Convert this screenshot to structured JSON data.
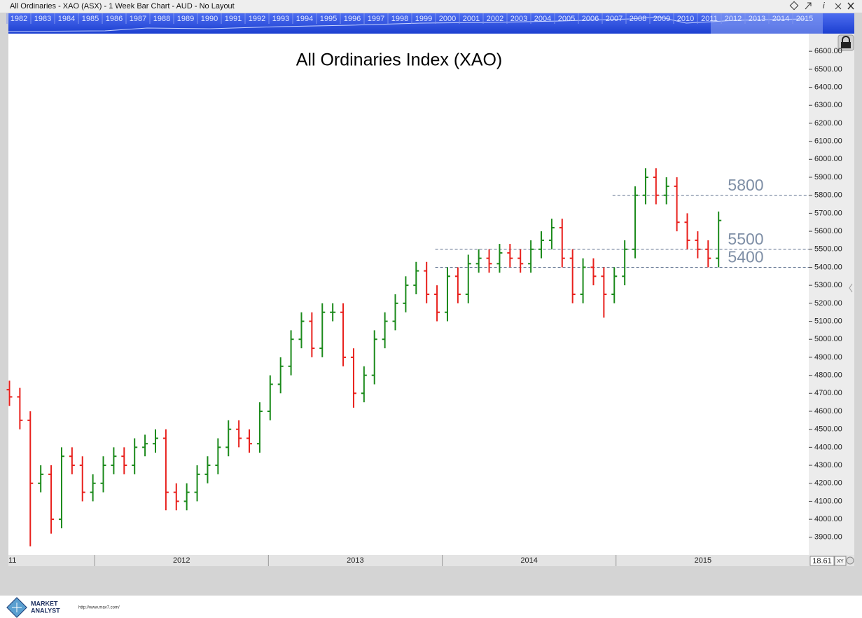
{
  "window_title": "All Ordinaries - XAO (ASX) - 1 Week Bar Chart - AUD - No Layout",
  "overview_years": [
    "1982",
    "1983",
    "1984",
    "1985",
    "1986",
    "1987",
    "1988",
    "1989",
    "1990",
    "1991",
    "1992",
    "1993",
    "1994",
    "1995",
    "1996",
    "1997",
    "1998",
    "1999",
    "2000",
    "2001",
    "2002",
    "2003",
    "2004",
    "2005",
    "2006",
    "2007",
    "2008",
    "2009",
    "2010",
    "2011",
    "2012",
    "2013",
    "2014",
    "2015"
  ],
  "zoom_value": "18.61",
  "zoom_mode": "XY",
  "footer": {
    "brand_line1": "MARKET",
    "brand_line2": "ANALYST",
    "url": "http://www.mav7.com/"
  },
  "chart_data": {
    "type": "ohlc",
    "title": "All Ordinaries Index (XAO)",
    "up_color": "#1b8a1b",
    "down_color": "#e8201c",
    "xlim": [
      2011.504,
      2016.109
    ],
    "xticks": [
      {
        "value": 2011,
        "label": "11"
      },
      2012,
      2013,
      2014,
      2015
    ],
    "ylim": [
      3802,
      6698
    ],
    "yticks": [
      {
        "value": 3900,
        "label": "3900.00"
      },
      {
        "value": 4000,
        "label": "4000.00"
      },
      {
        "value": 4100,
        "label": "4100.00"
      },
      {
        "value": 4200,
        "label": "4200.00"
      },
      {
        "value": 4300,
        "label": "4300.00"
      },
      {
        "value": 4400,
        "label": "4400.00"
      },
      {
        "value": 4500,
        "label": "4500.00"
      },
      {
        "value": 4600,
        "label": "4600.00"
      },
      {
        "value": 4700,
        "label": "4700.00"
      },
      {
        "value": 4800,
        "label": "4800.00"
      },
      {
        "value": 4900,
        "label": "4900.00"
      },
      {
        "value": 5000,
        "label": "5000.00"
      },
      {
        "value": 5100,
        "label": "5100.00"
      },
      {
        "value": 5200,
        "label": "5200.00"
      },
      {
        "value": 5300,
        "label": "5300.00"
      },
      {
        "value": 5400,
        "label": "5400.00"
      },
      {
        "value": 5500,
        "label": "5500.00"
      },
      {
        "value": 5600,
        "label": "5600.00"
      },
      {
        "value": 5700,
        "label": "5700.00"
      },
      {
        "value": 5800,
        "label": "5800.00"
      },
      {
        "value": 5900,
        "label": "5900.00"
      },
      {
        "value": 6000,
        "label": "6000.00"
      },
      {
        "value": 6100,
        "label": "6100.00"
      },
      {
        "value": 6200,
        "label": "6200.00"
      },
      {
        "value": 6300,
        "label": "6300.00"
      },
      {
        "value": 6400,
        "label": "6400.00"
      },
      {
        "value": 6500,
        "label": "6500.00"
      },
      {
        "value": 6600,
        "label": "6600.00"
      }
    ],
    "hlines": [
      {
        "y": 5800,
        "x": 2014.98
      },
      {
        "y": 5500,
        "x": 2013.96
      },
      {
        "y": 5400,
        "x": 2013.96
      }
    ],
    "x": [
      2011.51,
      2011.57,
      2011.63,
      2011.69,
      2011.75,
      2011.81,
      2011.87,
      2011.93,
      2011.99,
      2012.05,
      2012.11,
      2012.17,
      2012.23,
      2012.29,
      2012.35,
      2012.41,
      2012.47,
      2012.53,
      2012.59,
      2012.65,
      2012.71,
      2012.77,
      2012.83,
      2012.89,
      2012.95,
      2013.01,
      2013.07,
      2013.13,
      2013.19,
      2013.25,
      2013.31,
      2013.37,
      2013.43,
      2013.49,
      2013.55,
      2013.61,
      2013.67,
      2013.73,
      2013.79,
      2013.85,
      2013.91,
      2013.97,
      2014.03,
      2014.09,
      2014.15,
      2014.21,
      2014.27,
      2014.33,
      2014.39,
      2014.45,
      2014.51,
      2014.57,
      2014.63,
      2014.69,
      2014.75,
      2014.81,
      2014.87,
      2014.93,
      2014.99,
      2015.05,
      2015.11,
      2015.17,
      2015.23,
      2015.29,
      2015.35,
      2015.41,
      2015.47,
      2015.53,
      2015.59
    ],
    "open": [
      4720,
      4680,
      4550,
      4200,
      4250,
      4000,
      4350,
      4300,
      4150,
      4200,
      4300,
      4350,
      4300,
      4400,
      4420,
      4450,
      4150,
      4100,
      4150,
      4250,
      4300,
      4400,
      4500,
      4450,
      4420,
      4600,
      4750,
      4850,
      5000,
      5100,
      4950,
      5150,
      5150,
      4900,
      4700,
      4800,
      5000,
      5100,
      5200,
      5300,
      5380,
      5250,
      5150,
      5350,
      5250,
      5420,
      5450,
      5420,
      5480,
      5450,
      5420,
      5500,
      5550,
      5620,
      5450,
      5250,
      5400,
      5350,
      5250,
      5350,
      5500,
      5800,
      5900,
      5800,
      5850,
      5650,
      5550,
      5500,
      5450
    ],
    "high": [
      4770,
      4730,
      4600,
      4300,
      4300,
      4400,
      4400,
      4350,
      4250,
      4350,
      4400,
      4400,
      4450,
      4470,
      4500,
      4500,
      4200,
      4200,
      4300,
      4350,
      4450,
      4550,
      4550,
      4500,
      4650,
      4800,
      4900,
      5050,
      5150,
      5150,
      5200,
      5200,
      5200,
      4950,
      4850,
      5050,
      5150,
      5250,
      5350,
      5430,
      5430,
      5300,
      5400,
      5400,
      5470,
      5500,
      5500,
      5530,
      5530,
      5500,
      5550,
      5600,
      5670,
      5670,
      5500,
      5450,
      5450,
      5400,
      5400,
      5550,
      5850,
      5950,
      5950,
      5900,
      5900,
      5700,
      5600,
      5550,
      5710
    ],
    "low": [
      4630,
      4500,
      3850,
      4150,
      3920,
      3950,
      4250,
      4100,
      4100,
      4150,
      4250,
      4250,
      4250,
      4350,
      4370,
      4050,
      4050,
      4050,
      4100,
      4200,
      4250,
      4350,
      4400,
      4370,
      4370,
      4550,
      4700,
      4800,
      4950,
      4900,
      4900,
      5100,
      4850,
      4620,
      4650,
      4750,
      4950,
      5050,
      5150,
      5250,
      5200,
      5100,
      5100,
      5200,
      5200,
      5370,
      5370,
      5370,
      5400,
      5370,
      5370,
      5450,
      5500,
      5400,
      5200,
      5200,
      5300,
      5120,
      5200,
      5300,
      5450,
      5750,
      5750,
      5750,
      5600,
      5500,
      5450,
      5400,
      5400
    ],
    "close": [
      4680,
      4550,
      4200,
      4250,
      4000,
      4350,
      4300,
      4150,
      4200,
      4300,
      4350,
      4300,
      4400,
      4420,
      4450,
      4150,
      4100,
      4150,
      4250,
      4300,
      4400,
      4500,
      4450,
      4420,
      4600,
      4750,
      4850,
      5000,
      5100,
      4950,
      5150,
      5150,
      4900,
      4700,
      4800,
      5000,
      5100,
      5200,
      5300,
      5380,
      5250,
      5150,
      5350,
      5250,
      5420,
      5450,
      5420,
      5480,
      5450,
      5420,
      5500,
      5550,
      5620,
      5450,
      5250,
      5400,
      5350,
      5250,
      5350,
      5500,
      5800,
      5900,
      5800,
      5850,
      5650,
      5550,
      5500,
      5450,
      5660
    ]
  }
}
